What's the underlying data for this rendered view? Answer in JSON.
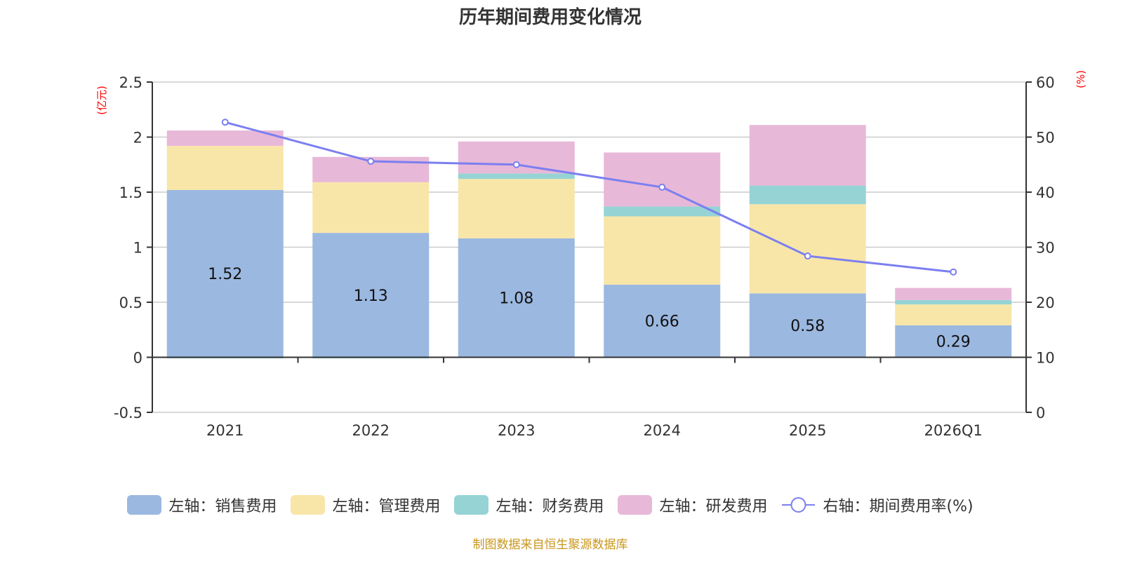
{
  "chart_data": {
    "type": "bar",
    "title": "历年期间费用变化情况",
    "categories": [
      "2021",
      "2022",
      "2023",
      "2024",
      "2025",
      "2026Q1"
    ],
    "left_axis": {
      "unit": "(亿元)",
      "ylim": [
        -0.5,
        2.5
      ],
      "ticks": [
        "-0.5",
        "0",
        "0.5",
        "1",
        "1.5",
        "2",
        "2.5"
      ]
    },
    "right_axis": {
      "unit": "(%)",
      "ylim": [
        0,
        60
      ],
      "ticks": [
        "0",
        "10",
        "20",
        "30",
        "40",
        "50",
        "60"
      ]
    },
    "grid": true,
    "stacked": true,
    "series": [
      {
        "name": "左轴：销售费用",
        "type": "bar",
        "axis": "left",
        "color": "#9bb8e0",
        "values": [
          1.52,
          1.13,
          1.08,
          0.66,
          0.58,
          0.29
        ],
        "labels": [
          "1.52",
          "1.13",
          "1.08",
          "0.66",
          "0.58",
          "0.29"
        ]
      },
      {
        "name": "左轴：管理费用",
        "type": "bar",
        "axis": "left",
        "color": "#f8e6a8",
        "values": [
          0.4,
          0.46,
          0.54,
          0.62,
          0.81,
          0.19
        ]
      },
      {
        "name": "左轴：财务费用",
        "type": "bar",
        "axis": "left",
        "color": "#96d3d4",
        "values": [
          -0.01,
          -0.01,
          0.05,
          0.09,
          0.17,
          0.04
        ]
      },
      {
        "name": "左轴：研发费用",
        "type": "bar",
        "axis": "left",
        "color": "#e8b8d8",
        "values": [
          0.14,
          0.23,
          0.29,
          0.49,
          0.55,
          0.11
        ]
      },
      {
        "name": "右轴：期间费用率(%)",
        "type": "line",
        "axis": "right",
        "color": "#7b7ff0",
        "values": [
          52.7,
          45.6,
          45.0,
          40.9,
          28.4,
          25.5
        ]
      }
    ],
    "legend_position": "bottom",
    "source": "制图数据来自恒生聚源数据库"
  }
}
